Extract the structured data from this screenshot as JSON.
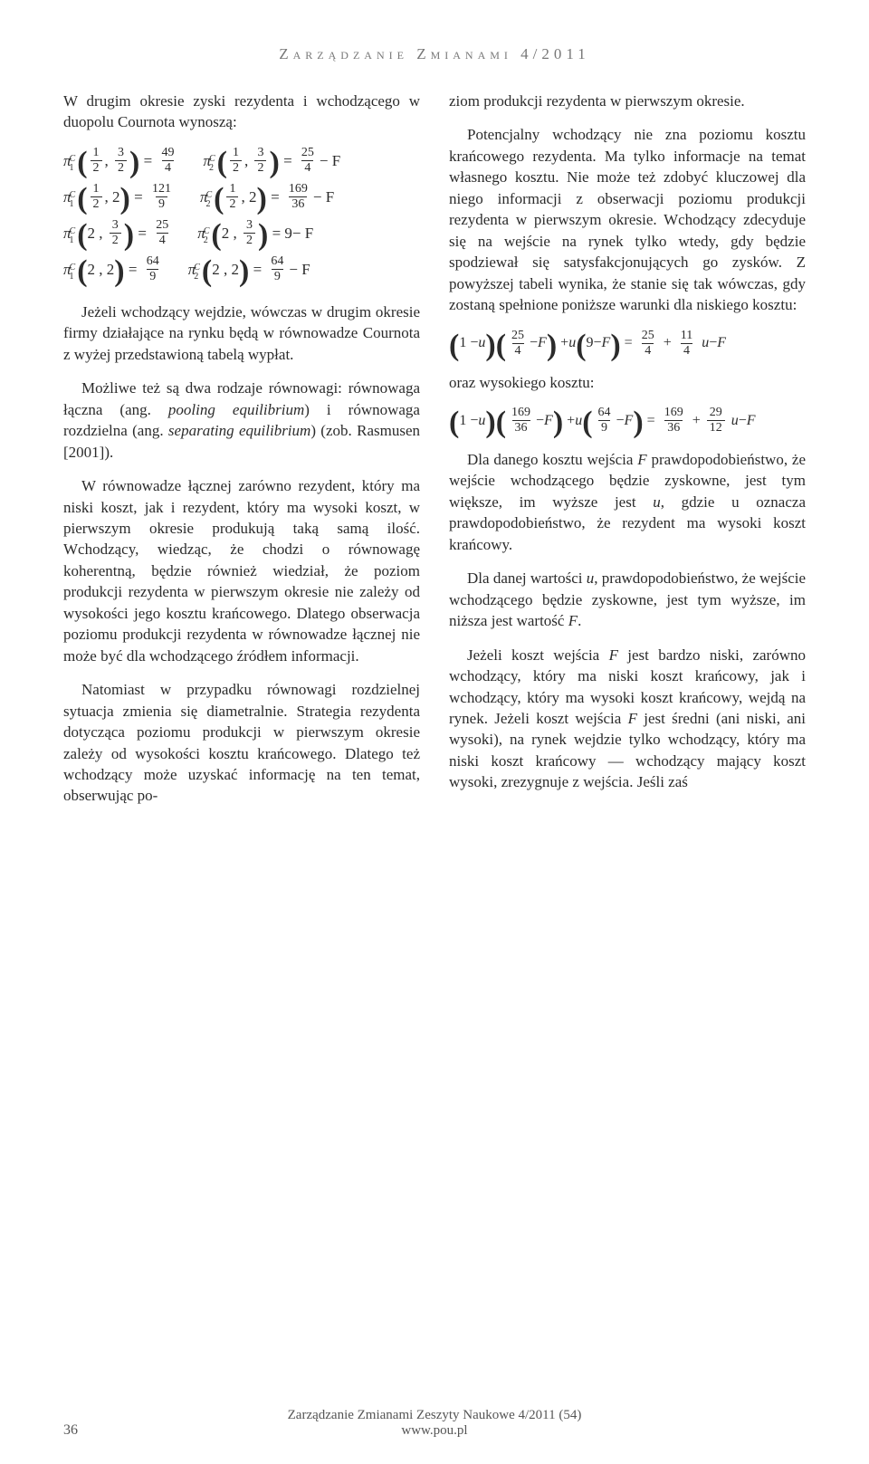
{
  "running_head": "Zarządzanie Zmianami 4/2011",
  "page_number": "36",
  "footer_line1": "Zarządzanie Zmianami Zeszyty Naukowe 4/2011 (54)",
  "footer_line2": "www.pou.pl",
  "left_intro": "W drugim okresie zyski rezydenta i wchodzącego w duopolu Cournota wynoszą:",
  "formula_block": {
    "rows": [
      {
        "left": {
          "sup": "C",
          "sub": "1",
          "args": [
            "1/2",
            "3/2"
          ],
          "rhs_num": "49",
          "rhs_den": "4",
          "tail": ""
        },
        "right": {
          "sup": "C",
          "sub": "2",
          "args": [
            "1/2",
            "3/2"
          ],
          "rhs_num": "25",
          "rhs_den": "4",
          "tail": " − F"
        }
      },
      {
        "left": {
          "sup": "C",
          "sub": "1",
          "args": [
            "1/2",
            "2"
          ],
          "rhs_num": "121",
          "rhs_den": "9",
          "tail": ""
        },
        "right": {
          "sup": "C",
          "sub": "2",
          "args": [
            "1/2",
            "2"
          ],
          "rhs_num": "169",
          "rhs_den": "36",
          "tail": " − F"
        }
      },
      {
        "left": {
          "sup": "C",
          "sub": "1",
          "args": [
            "2",
            "3/2"
          ],
          "rhs_num": "25",
          "rhs_den": "4",
          "tail": ""
        },
        "right": {
          "sup": "C",
          "sub": "2",
          "args": [
            "2",
            "3/2"
          ],
          "rhs_whole": "9",
          "tail": " − F"
        }
      },
      {
        "left": {
          "sup": "C",
          "sub": "1",
          "args": [
            "2",
            "2"
          ],
          "rhs_num": "64",
          "rhs_den": "9",
          "tail": ""
        },
        "right": {
          "sup": "C",
          "sub": "2",
          "args": [
            "2",
            "2"
          ],
          "rhs_num": "64",
          "rhs_den": "9",
          "tail": " − F"
        }
      }
    ]
  },
  "left_after_formula_1": "Jeżeli wchodzący wejdzie, wówczas w drugim okresie firmy działające na rynku będą w równowadze Cournota z wyżej przedstawioną tabelą wypłat.",
  "left_after_formula_2_pre": "Możliwe też są dwa rodzaje równowagi: równowaga łączna (ang. ",
  "left_after_formula_2_it1": "pooling equilibrium",
  "left_after_formula_2_mid": ") i równowaga rozdzielna (ang. ",
  "left_after_formula_2_it2": "separating equilibrium",
  "left_after_formula_2_post": ") (zob. Rasmusen [2001]).",
  "left_p3": "W równowadze łącznej zarówno rezydent, który ma niski koszt, jak i rezydent, który ma wysoki koszt, w pierwszym okresie produkują taką samą ilość. Wchodzący, wiedząc, że chodzi o równowagę koherentną, będzie również wiedział, że poziom produkcji rezydenta w pierwszym okresie nie zależy od wysokości jego kosztu krańcowego. Dlatego obserwacja poziomu produkcji rezydenta w równowadze łącznej nie może być dla wchodzącego źródłem informacji.",
  "left_p4": "Natomiast w przypadku równowagi rozdzielnej sytuacja zmienia się diametralnie. Strategia rezydenta dotycząca poziomu produkcji w pierwszym okresie zależy od wysokości kosztu krańcowego. Dlatego też wchodzący może uzyskać informację na ten temat, obserwując po-",
  "right_p1": "ziom produkcji rezydenta w pierwszym okresie.",
  "right_p2": "Potencjalny wchodzący nie zna poziomu kosztu krańcowego rezydenta. Ma tylko informacje na temat własnego kosztu. Nie może też zdobyć kluczowej dla niego informacji z obserwacji poziomu produkcji rezydenta w pierwszym okresie. Wchodzący zdecyduje się na wejście na rynek tylko wtedy, gdy będzie spodziewał się satysfakcjonujących go zysków. Z powyższej tabeli wynika, że stanie się tak wówczas, gdy zostaną spełnione poniższe warunki dla niskiego kosztu:",
  "eq1": {
    "t1_num": "25",
    "t1_den": "4",
    "t2_whole": "9",
    "r1_num": "25",
    "r1_den": "4",
    "r2_num": "11",
    "r2_den": "4"
  },
  "right_mid1": "oraz wysokiego kosztu:",
  "eq2": {
    "t1_num": "169",
    "t1_den": "36",
    "t2_num": "64",
    "t2_den": "9",
    "r1_num": "169",
    "r1_den": "36",
    "r2_num": "29",
    "r2_den": "12"
  },
  "right_p3_pre": "Dla danego kosztu wejścia ",
  "right_p3_F": "F",
  "right_p3_mid1": " prawdopodobieństwo, że wejście wchodzącego będzie zyskowne, jest tym większe, im wyższe jest ",
  "right_p3_u": "u",
  "right_p3_tail": ", gdzie u oznacza prawdopodobieństwo, że rezydent ma wysoki koszt krańcowy.",
  "right_p4_pre": "Dla danej wartości ",
  "right_p4_u": "u",
  "right_p4_mid": ", prawdopodobieństwo, że wejście wchodzącego będzie zyskowne, jest tym wyższe, im niższa jest wartość ",
  "right_p4_F": "F",
  "right_p4_end": ".",
  "right_p5_pre": "Jeżeli koszt wejścia ",
  "right_p5_it1": "F",
  "right_p5_mid1": " jest bardzo niski, zarówno wchodzący, który ma niski koszt krańcowy, jak i wchodzący, który ma wysoki koszt krańcowy, wejdą na rynek. Jeżeli koszt wejścia ",
  "right_p5_it2": "F",
  "right_p5_tail": " jest średni (ani niski, ani wysoki), na rynek wejdzie tylko wchodzący, który ma niski koszt krańcowy — wchodzący mający koszt wysoki, zrezygnuje z wejścia. Jeśli zaś"
}
